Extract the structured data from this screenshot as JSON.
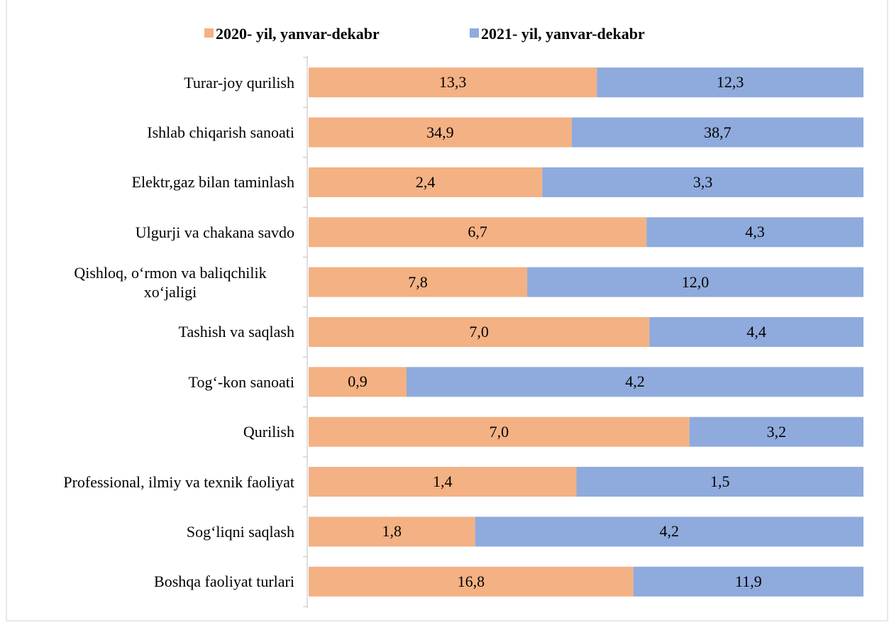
{
  "chart_data": {
    "type": "bar",
    "orientation": "horizontal",
    "stacked": "100%",
    "categories": [
      "Turar-joy qurilish",
      "Ishlab chiqarish sanoati",
      "Elektr,gaz bilan taminlash",
      "Ulgurji va chakana savdo",
      "Qishloq, o‘rmon va baliqchilik xo‘jaligi",
      "Tashish va saqlash",
      "Tog‘-kon sanoati",
      "Qurilish",
      "Professional, ilmiy va texnik faoliyat",
      "Sog‘liqni saqlash",
      "Boshqa faoliyat turlari"
    ],
    "series": [
      {
        "name": "2020- yil, yanvar-dekabr",
        "color": "#f4b183",
        "values": [
          13.3,
          34.9,
          2.4,
          6.7,
          7.8,
          7.0,
          0.9,
          7.0,
          1.4,
          1.8,
          16.8
        ],
        "value_labels": [
          "13,3",
          "34,9",
          "2,4",
          "6,7",
          "7,8",
          "7,0",
          "0,9",
          "7,0",
          "1,4",
          "1,8",
          "16,8"
        ]
      },
      {
        "name": "2021- yil, yanvar-dekabr",
        "color": "#8faadc",
        "values": [
          12.3,
          38.7,
          3.3,
          4.3,
          12.0,
          4.4,
          4.2,
          3.2,
          1.5,
          4.2,
          11.9
        ],
        "value_labels": [
          "12,3",
          "38,7",
          "3,3",
          "4,3",
          "12,0",
          "4,4",
          "4,2",
          "3,2",
          "1,5",
          "4,2",
          "11,9"
        ]
      }
    ],
    "legend": "top"
  }
}
